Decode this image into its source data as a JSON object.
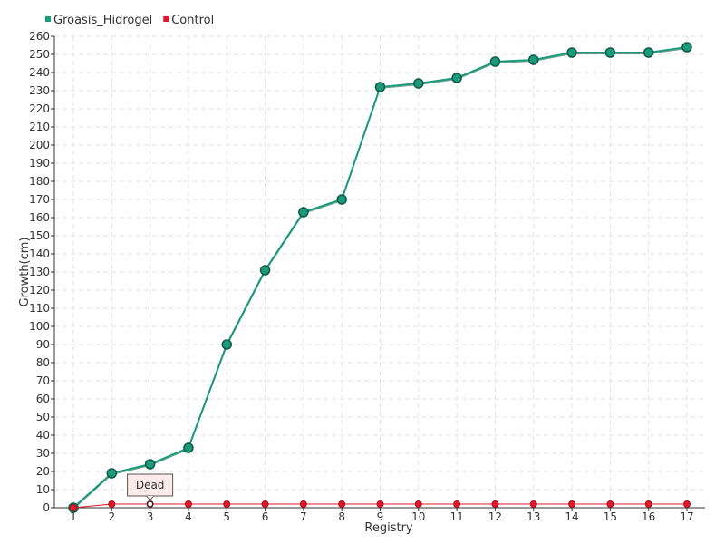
{
  "chart_data": {
    "type": "line",
    "title": "",
    "xlabel": "Registry",
    "ylabel": "Growth(cm)",
    "categories": [
      "1",
      "2",
      "3",
      "4",
      "5",
      "6",
      "7",
      "8",
      "9",
      "10",
      "11",
      "12",
      "13",
      "14",
      "15",
      "16",
      "17"
    ],
    "ylim": [
      0,
      260
    ],
    "ytick_step": 10,
    "grid": true,
    "legend_position": "top-left",
    "series": [
      {
        "name": "Groasis_Hidrogel",
        "color": "#1a9a7a",
        "values": [
          0,
          19,
          24,
          33,
          90,
          131,
          163,
          170,
          232,
          234,
          237,
          246,
          247,
          251,
          251,
          251,
          254
        ]
      },
      {
        "name": "Control",
        "color": "#e0182d",
        "values": [
          0,
          2,
          2,
          2,
          2,
          2,
          2,
          2,
          2,
          2,
          2,
          2,
          2,
          2,
          2,
          2,
          2
        ]
      }
    ],
    "annotations": [
      {
        "text": "Dead",
        "series": 1,
        "category": "3"
      }
    ]
  }
}
